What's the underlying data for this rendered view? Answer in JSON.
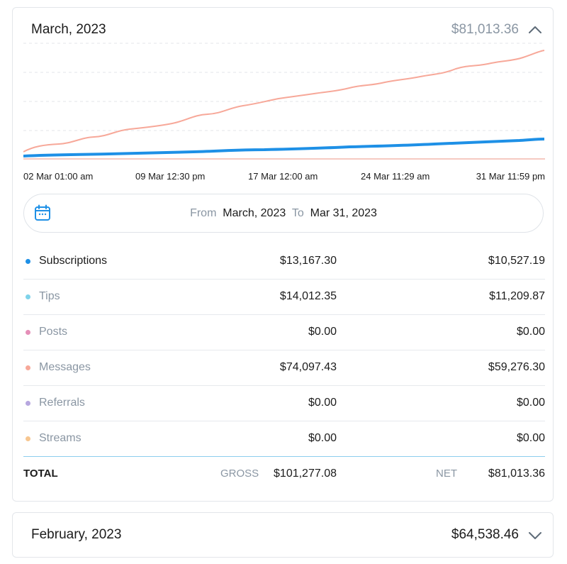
{
  "march": {
    "title": "March, 2023",
    "total": "$81,013.36",
    "chart": {
      "x_labels": [
        "02 Mar 01:00 am",
        "09 Mar 12:30 pm",
        "17 Mar 12:00 am",
        "24 Mar 11:29 am",
        "31 Mar 11:59 pm"
      ]
    },
    "range": {
      "from_label": "From",
      "from_value": "March, 2023",
      "to_label": "To",
      "to_value": "Mar 31, 2023"
    },
    "rows": [
      {
        "name": "Subscriptions",
        "gross": "$13,167.30",
        "net": "$10,527.19",
        "color": "#1e90e6"
      },
      {
        "name": "Tips",
        "gross": "$14,012.35",
        "net": "$11,209.87",
        "color": "#7fd3ea"
      },
      {
        "name": "Posts",
        "gross": "$0.00",
        "net": "$0.00",
        "color": "#e58fb8"
      },
      {
        "name": "Messages",
        "gross": "$74,097.43",
        "net": "$59,276.30",
        "color": "#f7a899"
      },
      {
        "name": "Referrals",
        "gross": "$0.00",
        "net": "$0.00",
        "color": "#b7a7df"
      },
      {
        "name": "Streams",
        "gross": "$0.00",
        "net": "$0.00",
        "color": "#f7c690"
      }
    ],
    "totals": {
      "label": "TOTAL",
      "gross_label": "GROSS",
      "gross": "$101,277.08",
      "net_label": "NET",
      "net": "$81,013.36"
    }
  },
  "february": {
    "title": "February, 2023",
    "total": "$64,538.46"
  },
  "colors": {
    "messages_line": "#f7a899",
    "subscriptions_line": "#1e90e6",
    "tips_line": "#f3b9ae",
    "grid": "#e3e6ea",
    "divider_accent": "#8ccdee"
  },
  "icons": {
    "collapse": "chevron-up-icon",
    "expand": "chevron-down-icon",
    "calendar": "calendar-icon"
  }
}
